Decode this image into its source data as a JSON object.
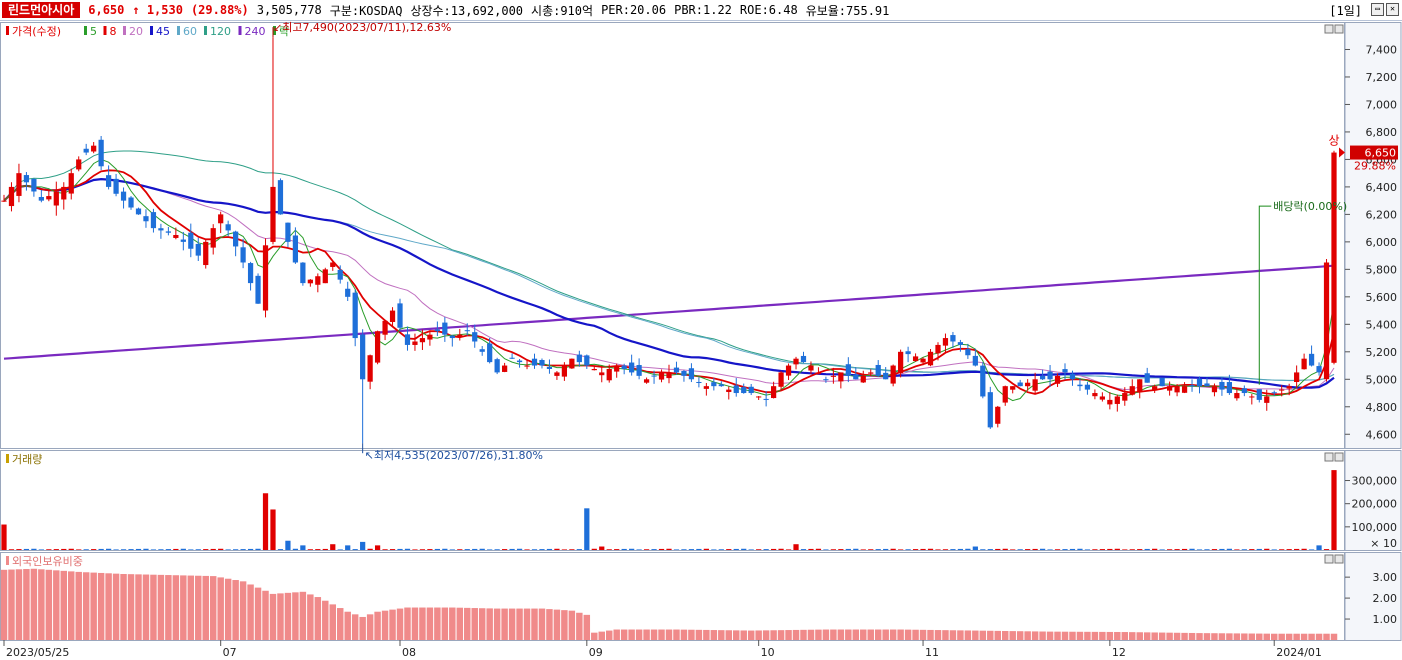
{
  "header": {
    "stock_name": "린드먼아시아",
    "price": "6,650",
    "change": "↑ 1,530",
    "change_pct": "(29.88%)",
    "volume": "3,505,778",
    "market": "구분:KOSDAQ",
    "shares": "상장수:13,692,000",
    "market_cap": "시총:910억",
    "per": "PER:20.06",
    "pbr": "PBR:1.22",
    "roe": "ROE:6.48",
    "float_ratio": "유보율:755.91",
    "period": "[1일]"
  },
  "colors": {
    "up": "#e00000",
    "down": "#1e6fd9",
    "ma5": "#2a9d2a",
    "ma20": "#c070c0",
    "ma45": "#1515c8",
    "ma60": "#5fa8c8",
    "ma120": "#2e9f87",
    "ma240": "#7a2ac0",
    "foreign": "#f08a8a"
  },
  "chart_data": [
    {
      "type": "candlestick",
      "legend": [
        "가격(수정)",
        "5",
        "8",
        "20",
        "45",
        "60",
        "120",
        "240",
        "락"
      ],
      "ylim": [
        4500,
        7600
      ],
      "yticks": [
        4600,
        4800,
        5000,
        5200,
        5400,
        5600,
        5800,
        6000,
        6200,
        6400,
        6600,
        6800,
        7000,
        7200,
        7400
      ],
      "ytick_labels": [
        "4,600",
        "4,800",
        "5,000",
        "5,200",
        "5,400",
        "5,600",
        "5,800",
        "6,000",
        "6,200",
        "6,400",
        "6,600",
        "6,800",
        "7,000",
        "7,200",
        "7,400"
      ],
      "x_labels": [
        {
          "i": 0,
          "t": "2023/05/25"
        },
        {
          "i": 29,
          "t": "07"
        },
        {
          "i": 53,
          "t": "08"
        },
        {
          "i": 78,
          "t": "09"
        },
        {
          "i": 101,
          "t": "10"
        },
        {
          "i": 123,
          "t": "11"
        },
        {
          "i": 148,
          "t": "12"
        },
        {
          "i": 170,
          "t": "2024/01"
        }
      ],
      "annotations": {
        "high": "최고7,490(2023/07/11),12.63%",
        "low": "최저4,535(2023/07/26),31.80%",
        "dividend": "배당락(0.00%)",
        "limit_up": "상",
        "last_price": "6,650",
        "last_pct": "29.88%"
      },
      "high_index": 36,
      "low_index": 48,
      "dividend_index": 168,
      "anchors": [
        [
          0,
          6300
        ],
        [
          2,
          6500
        ],
        [
          5,
          6300
        ],
        [
          8,
          6400
        ],
        [
          10,
          6600
        ],
        [
          12,
          6700
        ],
        [
          14,
          6400
        ],
        [
          16,
          6300
        ],
        [
          18,
          6200
        ],
        [
          20,
          6100
        ],
        [
          23,
          6050
        ],
        [
          26,
          5900
        ],
        [
          29,
          6200
        ],
        [
          32,
          5850
        ],
        [
          34,
          5550
        ],
        [
          36,
          6400
        ],
        [
          38,
          6000
        ],
        [
          40,
          5700
        ],
        [
          42,
          5750
        ],
        [
          44,
          5850
        ],
        [
          46,
          5600
        ],
        [
          48,
          5000
        ],
        [
          50,
          5350
        ],
        [
          52,
          5500
        ],
        [
          54,
          5250
        ],
        [
          56,
          5300
        ],
        [
          58,
          5350
        ],
        [
          60,
          5300
        ],
        [
          62,
          5350
        ],
        [
          64,
          5200
        ],
        [
          66,
          5050
        ],
        [
          68,
          5150
        ],
        [
          70,
          5100
        ],
        [
          72,
          5100
        ],
        [
          74,
          5050
        ],
        [
          76,
          5150
        ],
        [
          78,
          5100
        ],
        [
          80,
          5050
        ],
        [
          82,
          5100
        ],
        [
          84,
          5050
        ],
        [
          86,
          5000
        ],
        [
          88,
          5050
        ],
        [
          90,
          5050
        ],
        [
          92,
          5000
        ],
        [
          94,
          4950
        ],
        [
          96,
          4950
        ],
        [
          98,
          4900
        ],
        [
          100,
          4900
        ],
        [
          102,
          4850
        ],
        [
          104,
          5050
        ],
        [
          106,
          5150
        ],
        [
          108,
          5100
        ],
        [
          110,
          5000
        ],
        [
          112,
          5050
        ],
        [
          114,
          5000
        ],
        [
          116,
          5050
        ],
        [
          118,
          5000
        ],
        [
          120,
          5200
        ],
        [
          123,
          5150
        ],
        [
          126,
          5300
        ],
        [
          128,
          5250
        ],
        [
          130,
          5100
        ],
        [
          132,
          4650
        ],
        [
          134,
          4950
        ],
        [
          136,
          4950
        ],
        [
          138,
          5000
        ],
        [
          140,
          5000
        ],
        [
          142,
          5050
        ],
        [
          144,
          4950
        ],
        [
          146,
          4900
        ],
        [
          148,
          4850
        ],
        [
          150,
          4900
        ],
        [
          152,
          5000
        ],
        [
          154,
          4950
        ],
        [
          156,
          4950
        ],
        [
          158,
          4950
        ],
        [
          160,
          4950
        ],
        [
          162,
          4950
        ],
        [
          164,
          4900
        ],
        [
          166,
          4900
        ],
        [
          168,
          4850
        ],
        [
          170,
          4900
        ],
        [
          172,
          4950
        ],
        [
          174,
          5150
        ],
        [
          176,
          5050
        ],
        [
          178,
          6650
        ]
      ],
      "total_bars": 179
    },
    {
      "type": "bar",
      "name": "거래량",
      "ylim": [
        0,
        380000
      ],
      "yticks": [
        100000,
        200000,
        300000
      ],
      "ytick_labels": [
        "100,000",
        "200,000",
        "300,000"
      ],
      "unit_label": "× 10",
      "base": 2500,
      "spikes": [
        [
          0,
          110000
        ],
        [
          35,
          245000
        ],
        [
          36,
          175000
        ],
        [
          38,
          40000
        ],
        [
          40,
          20000
        ],
        [
          44,
          25000
        ],
        [
          46,
          20000
        ],
        [
          48,
          35000
        ],
        [
          50,
          20000
        ],
        [
          78,
          180000
        ],
        [
          80,
          15000
        ],
        [
          106,
          25000
        ],
        [
          130,
          15000
        ],
        [
          176,
          20000
        ],
        [
          178,
          345000
        ]
      ]
    },
    {
      "type": "bar",
      "name": "외국인보유비중",
      "ylim": [
        0,
        4.2
      ],
      "yticks": [
        1.0,
        2.0,
        3.0
      ],
      "ytick_labels": [
        "1.00",
        "2.00",
        "3.00"
      ],
      "anchors": [
        [
          0,
          3.35
        ],
        [
          4,
          3.4
        ],
        [
          10,
          3.25
        ],
        [
          16,
          3.15
        ],
        [
          22,
          3.1
        ],
        [
          28,
          3.05
        ],
        [
          32,
          2.8
        ],
        [
          36,
          2.2
        ],
        [
          40,
          2.3
        ],
        [
          42,
          2.05
        ],
        [
          44,
          1.7
        ],
        [
          46,
          1.35
        ],
        [
          48,
          1.1
        ],
        [
          50,
          1.35
        ],
        [
          54,
          1.55
        ],
        [
          60,
          1.55
        ],
        [
          66,
          1.5
        ],
        [
          72,
          1.5
        ],
        [
          76,
          1.4
        ],
        [
          78,
          1.2
        ],
        [
          79,
          0.35
        ],
        [
          82,
          0.5
        ],
        [
          90,
          0.5
        ],
        [
          100,
          0.45
        ],
        [
          110,
          0.5
        ],
        [
          120,
          0.5
        ],
        [
          130,
          0.45
        ],
        [
          140,
          0.4
        ],
        [
          150,
          0.38
        ],
        [
          160,
          0.33
        ],
        [
          170,
          0.3
        ],
        [
          178,
          0.3
        ]
      ]
    }
  ]
}
